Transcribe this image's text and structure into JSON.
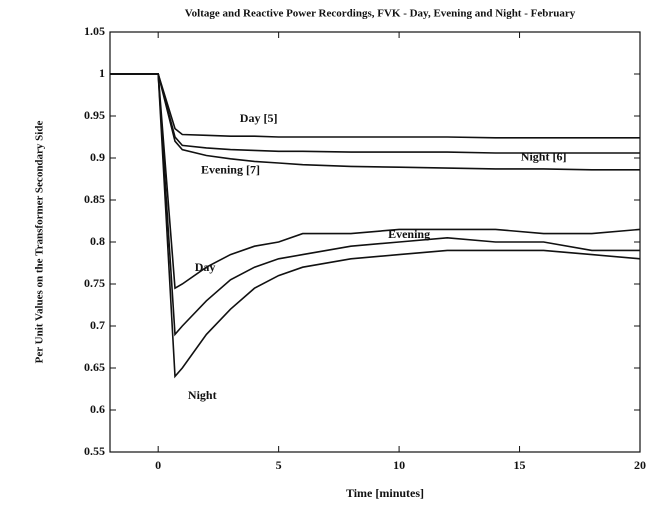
{
  "chart_data": {
    "type": "line",
    "title": "Voltage and Reactive Power Recordings, FVK - Day, Evening and Night - February",
    "x_label": "Time  [minutes]",
    "y_label": "Per Unit Values on the Transformer Secondary Side",
    "xlim": [
      -2,
      20
    ],
    "xticks": [
      0,
      5,
      10,
      15,
      20
    ],
    "ylim": [
      0.55,
      1.05
    ],
    "yticks": [
      0.55,
      0.6,
      0.65,
      0.7,
      0.75,
      0.8,
      0.85,
      0.9,
      0.95,
      1,
      1.05
    ],
    "x": [
      -2,
      -1,
      0,
      0.7,
      1,
      2,
      3,
      4,
      5,
      6,
      8,
      10,
      12,
      14,
      16,
      18,
      20
    ],
    "series": [
      {
        "name": "Day [5]",
        "color": "#111111",
        "values": [
          1,
          1,
          1,
          0.935,
          0.928,
          0.927,
          0.926,
          0.926,
          0.925,
          0.925,
          0.925,
          0.925,
          0.925,
          0.924,
          0.924,
          0.924,
          0.924
        ]
      },
      {
        "name": "Night [6]",
        "color": "#111111",
        "values": [
          1,
          1,
          1,
          0.925,
          0.915,
          0.912,
          0.91,
          0.909,
          0.908,
          0.908,
          0.907,
          0.907,
          0.907,
          0.906,
          0.906,
          0.906,
          0.906
        ]
      },
      {
        "name": "Evening [7]",
        "color": "#111111",
        "values": [
          1,
          1,
          1,
          0.92,
          0.91,
          0.903,
          0.899,
          0.896,
          0.894,
          0.892,
          0.89,
          0.889,
          0.888,
          0.887,
          0.887,
          0.886,
          0.886
        ]
      },
      {
        "name": "Day",
        "color": "#111111",
        "values": [
          1,
          1,
          1,
          0.745,
          0.75,
          0.77,
          0.785,
          0.795,
          0.8,
          0.81,
          0.81,
          0.815,
          0.815,
          0.815,
          0.81,
          0.81,
          0.815
        ]
      },
      {
        "name": "Evening",
        "color": "#111111",
        "values": [
          1,
          1,
          1,
          0.69,
          0.7,
          0.73,
          0.755,
          0.77,
          0.78,
          0.785,
          0.795,
          0.8,
          0.805,
          0.8,
          0.8,
          0.79,
          0.79
        ]
      },
      {
        "name": "Night",
        "color": "#111111",
        "values": [
          1,
          1,
          1,
          0.64,
          0.65,
          0.69,
          0.72,
          0.745,
          0.76,
          0.77,
          0.78,
          0.785,
          0.79,
          0.79,
          0.79,
          0.785,
          0.78
        ]
      }
    ]
  }
}
